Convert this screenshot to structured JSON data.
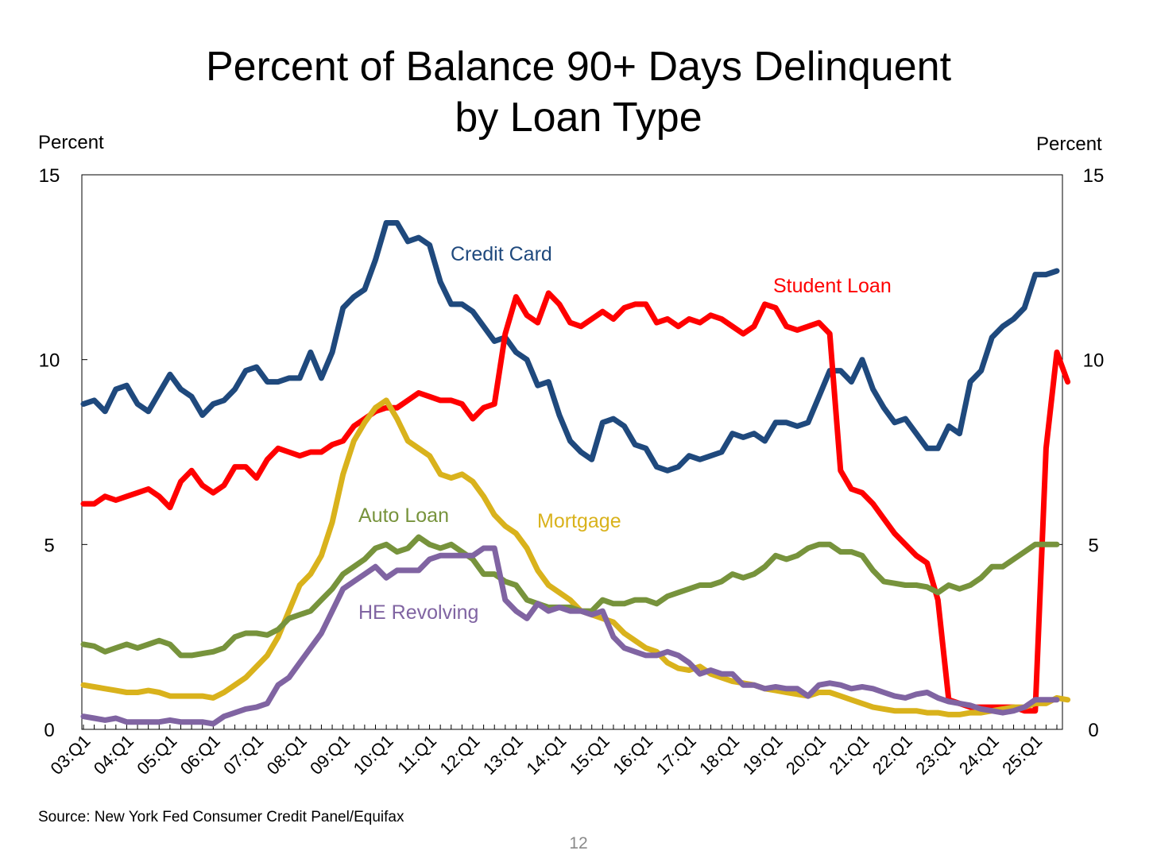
{
  "page_number": "12",
  "source": "Source: New York Fed Consumer Credit Panel/Equifax",
  "chart_data": {
    "type": "line",
    "title_lines": [
      "Percent of Balance 90+ Days Delinquent",
      "by Loan Type"
    ],
    "ylabel_left": "Percent",
    "ylabel_right": "Percent",
    "ylim": [
      0,
      15
    ],
    "yticks": [
      0,
      5,
      10,
      15
    ],
    "grid": false,
    "x_start": "2003Q1",
    "x_tick_labels": [
      "03:Q1",
      "04:Q1",
      "05:Q1",
      "06:Q1",
      "07:Q1",
      "08:Q1",
      "09:Q1",
      "10:Q1",
      "11:Q1",
      "12:Q1",
      "13:Q1",
      "14:Q1",
      "15:Q1",
      "16:Q1",
      "17:Q1",
      "18:Q1",
      "19:Q1",
      "20:Q1",
      "21:Q1",
      "22:Q1",
      "23:Q1",
      "24:Q1",
      "25:Q1"
    ],
    "series": [
      {
        "name": "Credit Card",
        "color": "#1f497d",
        "values": [
          8.8,
          8.9,
          8.6,
          9.2,
          9.3,
          8.8,
          8.6,
          9.1,
          9.6,
          9.2,
          9.0,
          8.5,
          8.8,
          8.9,
          9.2,
          9.7,
          9.8,
          9.4,
          9.4,
          9.5,
          9.5,
          10.2,
          9.5,
          10.2,
          11.4,
          11.7,
          11.9,
          12.7,
          13.7,
          13.7,
          13.2,
          13.3,
          13.1,
          12.1,
          11.5,
          11.5,
          11.3,
          10.9,
          10.5,
          10.6,
          10.2,
          10.0,
          9.3,
          9.4,
          8.5,
          7.8,
          7.5,
          7.3,
          8.3,
          8.4,
          8.2,
          7.7,
          7.6,
          7.1,
          7.0,
          7.1,
          7.4,
          7.3,
          7.4,
          7.5,
          8.0,
          7.9,
          8.0,
          7.8,
          8.3,
          8.3,
          8.2,
          8.3,
          9.0,
          9.7,
          9.7,
          9.4,
          10.0,
          9.2,
          8.7,
          8.3,
          8.4,
          8.0,
          7.6,
          7.6,
          8.2,
          8.0,
          9.4,
          9.7,
          10.6,
          10.9,
          11.1,
          11.4,
          12.3,
          12.3,
          12.4
        ]
      },
      {
        "name": "Student Loan",
        "color": "#ff0000",
        "values": [
          6.1,
          6.1,
          6.3,
          6.2,
          6.3,
          6.4,
          6.5,
          6.3,
          6.0,
          6.7,
          7.0,
          6.6,
          6.4,
          6.6,
          7.1,
          7.1,
          6.8,
          7.3,
          7.6,
          7.5,
          7.4,
          7.5,
          7.5,
          7.7,
          7.8,
          8.2,
          8.4,
          8.6,
          8.7,
          8.7,
          8.9,
          9.1,
          9.0,
          8.9,
          8.9,
          8.8,
          8.4,
          8.7,
          8.8,
          10.7,
          11.7,
          11.2,
          11.0,
          11.8,
          11.5,
          11.0,
          10.9,
          11.1,
          11.3,
          11.1,
          11.4,
          11.5,
          11.5,
          11.0,
          11.1,
          10.9,
          11.1,
          11.0,
          11.2,
          11.1,
          10.9,
          10.7,
          10.9,
          11.5,
          11.4,
          10.9,
          10.8,
          10.9,
          11.0,
          10.7,
          7.0,
          6.5,
          6.4,
          6.1,
          5.7,
          5.3,
          5.0,
          4.7,
          4.5,
          3.5,
          0.8,
          0.7,
          0.6,
          0.6,
          0.6,
          0.6,
          0.6,
          0.5,
          0.5,
          7.6,
          10.2,
          9.4
        ]
      },
      {
        "name": "Mortgage",
        "color": "#d9b21c",
        "values": [
          1.2,
          1.15,
          1.1,
          1.05,
          1.0,
          1.0,
          1.05,
          1.0,
          0.9,
          0.9,
          0.9,
          0.9,
          0.85,
          1.0,
          1.2,
          1.4,
          1.7,
          2.0,
          2.5,
          3.2,
          3.9,
          4.2,
          4.7,
          5.6,
          6.9,
          7.8,
          8.3,
          8.7,
          8.9,
          8.4,
          7.8,
          7.6,
          7.4,
          6.9,
          6.8,
          6.9,
          6.7,
          6.3,
          5.8,
          5.5,
          5.3,
          4.9,
          4.3,
          3.9,
          3.7,
          3.5,
          3.2,
          3.1,
          3.0,
          2.9,
          2.6,
          2.4,
          2.2,
          2.1,
          1.8,
          1.65,
          1.6,
          1.7,
          1.5,
          1.4,
          1.3,
          1.25,
          1.2,
          1.1,
          1.05,
          1.0,
          0.95,
          0.9,
          1.0,
          1.0,
          0.9,
          0.8,
          0.7,
          0.6,
          0.55,
          0.5,
          0.5,
          0.5,
          0.45,
          0.45,
          0.4,
          0.4,
          0.45,
          0.45,
          0.5,
          0.55,
          0.6,
          0.6,
          0.7,
          0.7,
          0.85,
          0.8
        ]
      },
      {
        "name": "Auto Loan",
        "color": "#77933c",
        "values": [
          2.3,
          2.25,
          2.1,
          2.2,
          2.3,
          2.2,
          2.3,
          2.4,
          2.3,
          2.0,
          2.0,
          2.05,
          2.1,
          2.2,
          2.5,
          2.6,
          2.6,
          2.55,
          2.7,
          3.0,
          3.1,
          3.2,
          3.5,
          3.8,
          4.2,
          4.4,
          4.6,
          4.9,
          5.0,
          4.8,
          4.9,
          5.2,
          5.0,
          4.9,
          5.0,
          4.8,
          4.6,
          4.2,
          4.2,
          4.0,
          3.9,
          3.5,
          3.4,
          3.3,
          3.3,
          3.3,
          3.2,
          3.2,
          3.5,
          3.4,
          3.4,
          3.5,
          3.5,
          3.4,
          3.6,
          3.7,
          3.8,
          3.9,
          3.9,
          4.0,
          4.2,
          4.1,
          4.2,
          4.4,
          4.7,
          4.6,
          4.7,
          4.9,
          5.0,
          5.0,
          4.8,
          4.8,
          4.7,
          4.3,
          4.0,
          3.95,
          3.9,
          3.9,
          3.85,
          3.7,
          3.9,
          3.8,
          3.9,
          4.1,
          4.4,
          4.4,
          4.6,
          4.8,
          5.0,
          5.0,
          5.0
        ]
      },
      {
        "name": "HE Revolving",
        "color": "#8064a2",
        "values": [
          0.35,
          0.3,
          0.25,
          0.3,
          0.2,
          0.2,
          0.2,
          0.2,
          0.25,
          0.2,
          0.2,
          0.2,
          0.15,
          0.35,
          0.45,
          0.55,
          0.6,
          0.7,
          1.2,
          1.4,
          1.8,
          2.2,
          2.6,
          3.2,
          3.8,
          4.0,
          4.2,
          4.4,
          4.1,
          4.3,
          4.3,
          4.3,
          4.6,
          4.7,
          4.7,
          4.7,
          4.7,
          4.9,
          4.9,
          3.5,
          3.2,
          3.0,
          3.4,
          3.2,
          3.3,
          3.2,
          3.2,
          3.1,
          3.2,
          2.5,
          2.2,
          2.1,
          2.0,
          2.0,
          2.1,
          2.0,
          1.8,
          1.5,
          1.6,
          1.5,
          1.5,
          1.2,
          1.2,
          1.1,
          1.15,
          1.1,
          1.1,
          0.9,
          1.2,
          1.25,
          1.2,
          1.1,
          1.15,
          1.1,
          1.0,
          0.9,
          0.85,
          0.95,
          1.0,
          0.85,
          0.75,
          0.7,
          0.65,
          0.55,
          0.5,
          0.45,
          0.5,
          0.6,
          0.8,
          0.8,
          0.8
        ]
      }
    ],
    "annotations": [
      {
        "text": "Credit Card",
        "series": "Credit Card"
      },
      {
        "text": "Student Loan",
        "series": "Student Loan"
      },
      {
        "text": "Mortgage",
        "series": "Mortgage"
      },
      {
        "text": "Auto Loan",
        "series": "Auto Loan"
      },
      {
        "text": "HE Revolving",
        "series": "HE Revolving"
      }
    ]
  }
}
